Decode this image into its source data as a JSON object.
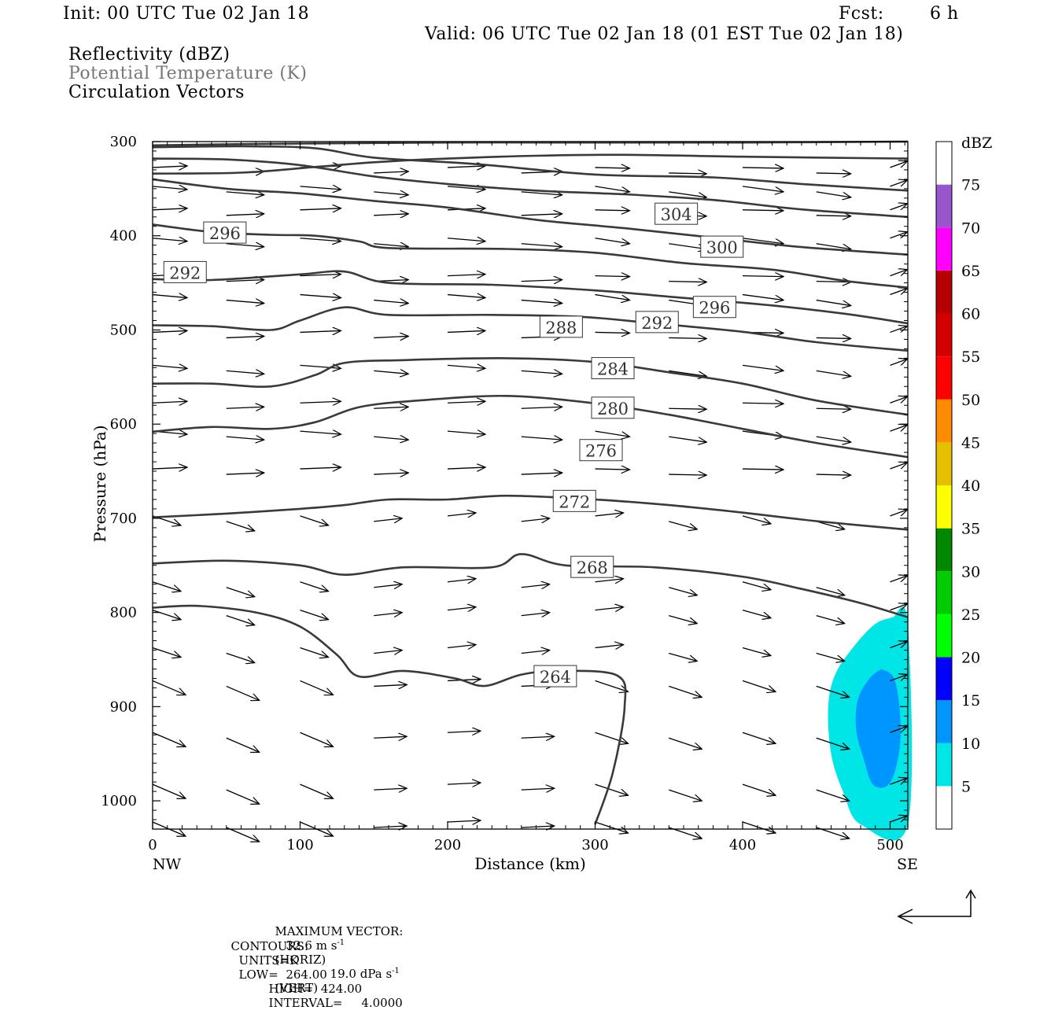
{
  "header": {
    "init": "Init: 00 UTC Tue 02 Jan 18",
    "fcst_label": "Fcst:",
    "fcst_value": "6 h",
    "valid": "Valid: 06 UTC Tue 02 Jan 18 (01 EST Tue 02 Jan 18)",
    "field1": "Reflectivity (dBZ)",
    "field2": "Potential Temperature (K)",
    "field3": "Circulation Vectors"
  },
  "colors": {
    "contour": "#3a3a3a",
    "field2_text": "#777777",
    "dbz_5": "#00e6e6",
    "dbz_10": "#0096ff"
  },
  "chart_data": {
    "type": "cross-section",
    "xlabel": "Distance (km)",
    "ylabel": "Pressure (hPa)",
    "xlim": [
      0,
      512
    ],
    "ylim": [
      1030,
      300
    ],
    "x_ticks": [
      "0",
      "100",
      "200",
      "300",
      "400",
      "500"
    ],
    "x_tick_values": [
      0,
      100,
      200,
      300,
      400,
      500
    ],
    "y_ticks": [
      "300",
      "400",
      "500",
      "600",
      "700",
      "800",
      "900",
      "1000"
    ],
    "y_tick_values": [
      300,
      400,
      500,
      600,
      700,
      800,
      900,
      1000
    ],
    "x_end_labels": {
      "left": "NW",
      "right": "SE"
    },
    "colorbar": {
      "unit": "dBZ",
      "levels": [
        "5",
        "10",
        "15",
        "20",
        "25",
        "30",
        "35",
        "40",
        "45",
        "50",
        "55",
        "60",
        "65",
        "70",
        "75"
      ],
      "colors": [
        "#00e6e6",
        "#0096ff",
        "#0000ff",
        "#00ff00",
        "#00cc00",
        "#008800",
        "#ffff00",
        "#e6c000",
        "#ff8c00",
        "#ff0000",
        "#d40000",
        "#b40000",
        "#ff00ff",
        "#9955cc",
        "#ffffff"
      ]
    },
    "theta_contours": [
      {
        "value": 264,
        "label": "264",
        "label_at": [
          273,
          868
        ],
        "points": [
          [
            0,
            795
          ],
          [
            30,
            793
          ],
          [
            70,
            800
          ],
          [
            100,
            815
          ],
          [
            125,
            845
          ],
          [
            140,
            868
          ],
          [
            170,
            862
          ],
          [
            205,
            870
          ],
          [
            225,
            878
          ],
          [
            250,
            866
          ],
          [
            275,
            862
          ],
          [
            315,
            867
          ],
          [
            320,
            900
          ],
          [
            312,
            970
          ],
          [
            300,
            1025
          ]
        ]
      },
      {
        "value": 268,
        "label": "268",
        "label_at": [
          298,
          752
        ],
        "points": [
          [
            0,
            748
          ],
          [
            50,
            745
          ],
          [
            100,
            750
          ],
          [
            130,
            760
          ],
          [
            170,
            752
          ],
          [
            230,
            752
          ],
          [
            250,
            738
          ],
          [
            280,
            750
          ],
          [
            340,
            752
          ],
          [
            400,
            762
          ],
          [
            440,
            775
          ],
          [
            480,
            790
          ],
          [
            512,
            805
          ]
        ]
      },
      {
        "value": 272,
        "label": "272",
        "label_at": [
          286,
          682
        ],
        "points": [
          [
            0,
            699
          ],
          [
            50,
            695
          ],
          [
            100,
            690
          ],
          [
            130,
            686
          ],
          [
            160,
            680
          ],
          [
            200,
            680
          ],
          [
            240,
            676
          ],
          [
            300,
            680
          ],
          [
            350,
            686
          ],
          [
            400,
            694
          ],
          [
            450,
            703
          ],
          [
            512,
            712
          ]
        ]
      },
      {
        "value": 276,
        "label": "276",
        "label_at": [
          304,
          628
        ],
        "points": [
          [
            0,
            608
          ],
          [
            40,
            603
          ],
          [
            80,
            605
          ],
          [
            110,
            598
          ],
          [
            140,
            582
          ],
          [
            180,
            575
          ],
          [
            240,
            570
          ],
          [
            300,
            578
          ],
          [
            350,
            590
          ],
          [
            400,
            605
          ],
          [
            450,
            620
          ],
          [
            512,
            635
          ]
        ]
      },
      {
        "value": 280,
        "label": "280",
        "label_at": [
          312,
          583
        ],
        "points": [
          [
            0,
            557
          ],
          [
            40,
            557
          ],
          [
            80,
            560
          ],
          [
            110,
            548
          ],
          [
            130,
            535
          ],
          [
            170,
            532
          ],
          [
            240,
            530
          ],
          [
            300,
            534
          ],
          [
            350,
            545
          ],
          [
            400,
            557
          ],
          [
            450,
            575
          ],
          [
            512,
            590
          ]
        ]
      },
      {
        "value": 284,
        "label": "284",
        "label_at": [
          312,
          541
        ],
        "points": [
          [
            0,
            495
          ],
          [
            40,
            496
          ],
          [
            80,
            500
          ],
          [
            100,
            490
          ],
          [
            130,
            476
          ],
          [
            160,
            484
          ],
          [
            230,
            484
          ],
          [
            290,
            486
          ],
          [
            340,
            493
          ],
          [
            400,
            502
          ],
          [
            450,
            513
          ],
          [
            512,
            522
          ]
        ]
      },
      {
        "value": 288,
        "label": "288",
        "label_at": [
          277,
          497
        ],
        "points": [
          [
            0,
            446
          ],
          [
            40,
            447
          ],
          [
            100,
            441
          ],
          [
            130,
            438
          ],
          [
            160,
            450
          ],
          [
            230,
            452
          ],
          [
            300,
            458
          ],
          [
            360,
            466
          ],
          [
            420,
            474
          ],
          [
            470,
            483
          ],
          [
            512,
            493
          ]
        ]
      },
      {
        "value": 292,
        "label": "292",
        "label_at": [
          342,
          492
        ],
        "points": [
          [
            0,
            388
          ],
          [
            40,
            396
          ],
          [
            80,
            399
          ],
          [
            110,
            400
          ],
          [
            140,
            406
          ],
          [
            160,
            413
          ],
          [
            240,
            414
          ],
          [
            300,
            418
          ],
          [
            360,
            429
          ],
          [
            420,
            436
          ],
          [
            470,
            448
          ],
          [
            512,
            455
          ]
        ]
      },
      {
        "value": 296,
        "label": "296",
        "label_at": [
          381,
          476
        ],
        "points": [
          [
            0,
            340
          ],
          [
            50,
            350
          ],
          [
            100,
            355
          ],
          [
            150,
            363
          ],
          [
            200,
            370
          ],
          [
            260,
            383
          ],
          [
            320,
            392
          ],
          [
            380,
            402
          ],
          [
            440,
            412
          ],
          [
            512,
            420
          ]
        ]
      },
      {
        "value": 300,
        "label": "300",
        "label_at": [
          386,
          412
        ],
        "points": [
          [
            0,
            318
          ],
          [
            50,
            319
          ],
          [
            100,
            325
          ],
          [
            150,
            337
          ],
          [
            200,
            345
          ],
          [
            260,
            352
          ],
          [
            320,
            356
          ],
          [
            380,
            362
          ],
          [
            440,
            372
          ],
          [
            512,
            380
          ]
        ]
      },
      {
        "value": 304,
        "label": "304",
        "label_at": [
          355,
          377
        ],
        "points": [
          [
            0,
            306
          ],
          [
            60,
            305
          ],
          [
            110,
            307
          ],
          [
            150,
            317
          ],
          [
            220,
            324
          ],
          [
            300,
            335
          ],
          [
            380,
            338
          ],
          [
            440,
            345
          ],
          [
            512,
            352
          ]
        ]
      }
    ],
    "extra_labels": [
      {
        "label": "296",
        "at": [
          49,
          397
        ]
      },
      {
        "label": "292",
        "at": [
          22,
          439
        ]
      }
    ],
    "theta_extra_lines": [
      [
        [
          0,
          334
        ],
        [
          60,
          333
        ],
        [
          110,
          327
        ],
        [
          150,
          322
        ],
        [
          200,
          318
        ],
        [
          260,
          315
        ],
        [
          320,
          314
        ],
        [
          400,
          316
        ],
        [
          512,
          318
        ]
      ],
      [
        [
          0,
          304
        ],
        [
          100,
          302
        ],
        [
          200,
          301
        ],
        [
          300,
          301
        ],
        [
          400,
          301
        ],
        [
          512,
          300
        ]
      ]
    ],
    "reflectivity": [
      {
        "level": 5,
        "polygon": [
          [
            502,
            805
          ],
          [
            512,
            812
          ],
          [
            512,
            1025
          ],
          [
            480,
            1025
          ],
          [
            468,
            990
          ],
          [
            460,
            950
          ],
          [
            458,
            900
          ],
          [
            463,
            865
          ],
          [
            476,
            835
          ],
          [
            490,
            812
          ]
        ]
      },
      {
        "level": 10,
        "polygon": [
          [
            494,
            860
          ],
          [
            502,
            868
          ],
          [
            506,
            895
          ],
          [
            507,
            935
          ],
          [
            503,
            970
          ],
          [
            497,
            985
          ],
          [
            488,
            982
          ],
          [
            482,
            955
          ],
          [
            477,
            925
          ],
          [
            478,
            893
          ],
          [
            486,
            870
          ]
        ]
      }
    ],
    "max_vector_horiz": "32.6",
    "max_vector_vert": "19.0",
    "contour_units": "K",
    "contour_low": "264.00",
    "contour_high": "424.00",
    "contour_interval": "4.0000"
  },
  "footer": {
    "line1_label": "MAXIMUM VECTOR:",
    "line1_horiz": "32.6 m s",
    "line1_horiz_suffix": "(HORIZ)",
    "line1_vert": "19.0 dPa s",
    "line1_vert_suffix": "(VERT)",
    "line2_label": "CONTOURS:",
    "line2_units": "UNITS=K",
    "line2_low": "LOW=  264.00",
    "line2_high": "HIGH=  424.00",
    "line2_interval": "INTERVAL=     4.0000"
  }
}
